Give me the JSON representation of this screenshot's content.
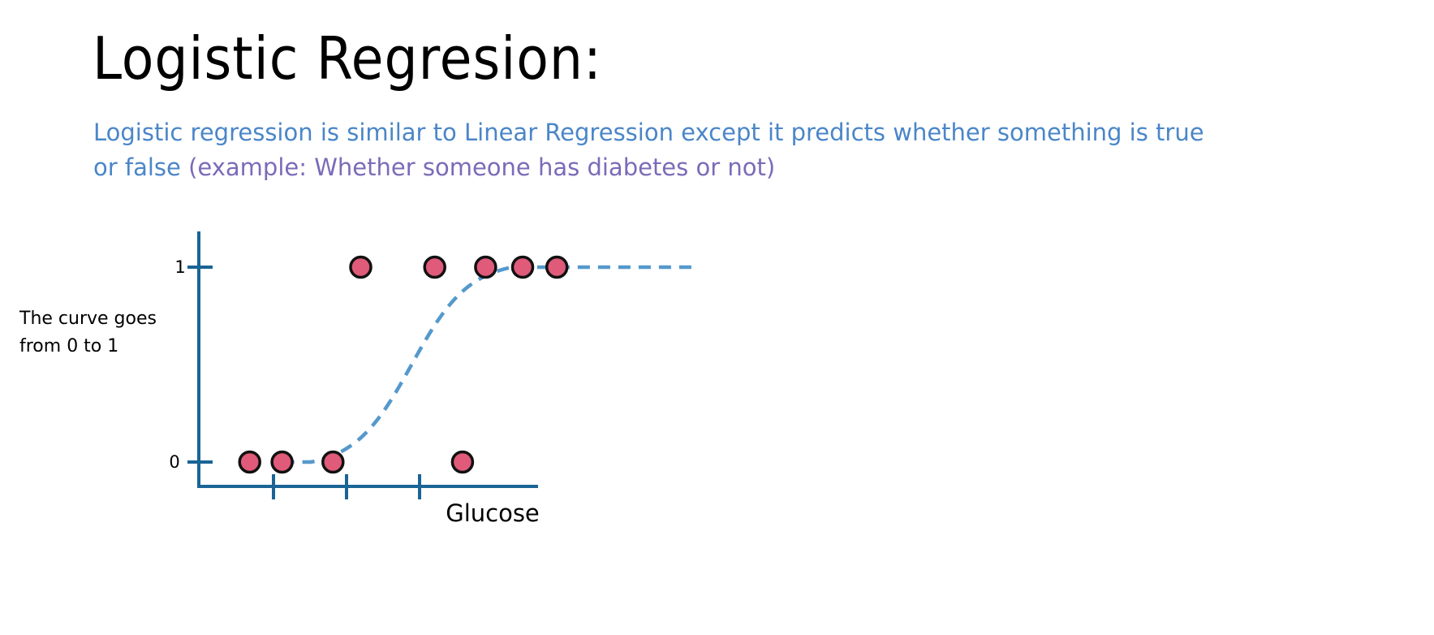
{
  "slide": {
    "title": "Logistic Regresion:",
    "description_main": "Logistic regression is similar to Linear Regression except it predicts whether something is true or false",
    "description_example": "(example: Whether someone has diabetes or not)",
    "side_note_line1": "The curve goes",
    "side_note_line2": "from 0 to 1"
  },
  "colors": {
    "description": "#4a86c8",
    "example": "#7b6bb8",
    "axis": "#1a6496",
    "curve": "#5599cc",
    "point_fill": "#e05a7a",
    "point_stroke": "#111111"
  },
  "chart_data": {
    "type": "scatter",
    "xlabel": "Glucose",
    "ylabel": "",
    "yticks": [
      "0",
      "1"
    ],
    "x_tick_count": 3,
    "points": [
      {
        "x": 0.5,
        "y": 0
      },
      {
        "x": 0.85,
        "y": 0
      },
      {
        "x": 1.4,
        "y": 0
      },
      {
        "x": 2.8,
        "y": 0
      },
      {
        "x": 1.7,
        "y": 1
      },
      {
        "x": 2.5,
        "y": 1
      },
      {
        "x": 3.05,
        "y": 1
      },
      {
        "x": 3.45,
        "y": 1
      },
      {
        "x": 3.82,
        "y": 1
      }
    ],
    "curve": {
      "kind": "sigmoid",
      "style": "dashed",
      "x_start": 0.85,
      "x_end": 5.3,
      "midpoint": 2.25,
      "steepness": 3.2
    },
    "xlim": [
      -0.05,
      4.95
    ],
    "ylim": [
      -0.12,
      1.0
    ],
    "grid": false,
    "legend": "none"
  }
}
